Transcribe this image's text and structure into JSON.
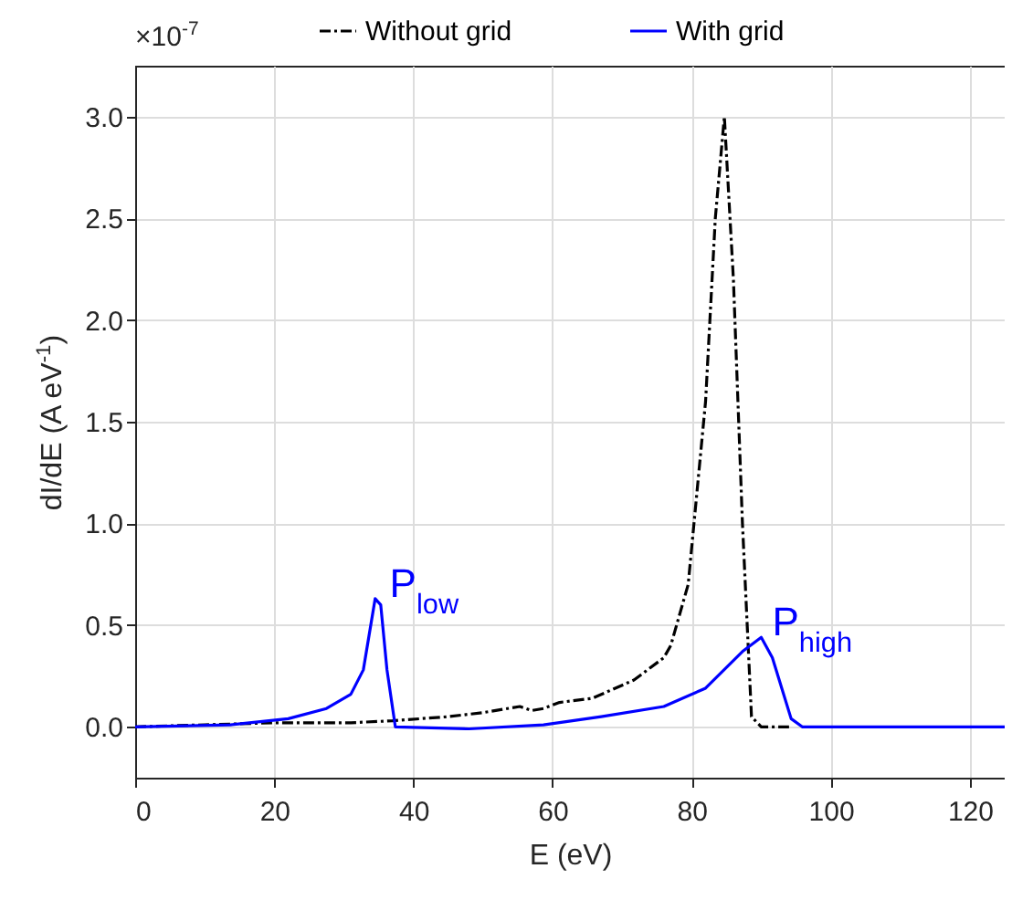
{
  "chart_data": {
    "type": "line",
    "xlabel": "E (eV)",
    "ylabel": "dI/dE (A eV$^{-1}$)",
    "xlim": [
      0,
      125
    ],
    "xticks": [
      0,
      20,
      40,
      60,
      80,
      100,
      120
    ],
    "ylim": [
      -0.25,
      3.25
    ],
    "yticks": [
      {
        "value": 0,
        "label": "0.0"
      },
      {
        "value": 0.5,
        "label": "0.5"
      },
      {
        "value": 1,
        "label": "1.0"
      },
      {
        "value": 1.5,
        "label": "1.5"
      },
      {
        "value": 2,
        "label": "2.0"
      },
      {
        "value": 2.5,
        "label": "2.5"
      },
      {
        "value": 3,
        "label": "3.0"
      }
    ],
    "grid": true,
    "legend": "top",
    "annotations": [
      "×10$^{-7}$",
      {
        "text": "P$_{low}$",
        "x": 35,
        "y": 0.63
      },
      {
        "text": "P$_{high}$",
        "x": 90,
        "y": 0.44
      }
    ],
    "series": [
      {
        "name": "Without grid",
        "color": "#000000",
        "line_style": "dashed",
        "x": [
          0,
          10,
          20,
          31,
          37,
          45,
          50,
          55.3,
          57,
          58.7,
          61,
          65.7,
          71.7,
          76,
          77,
          79.5,
          82,
          83.4,
          84.7,
          86,
          87.3,
          88.6,
          90,
          94
        ],
        "values": [
          0,
          0.01,
          0.02,
          0.02,
          0.03,
          0.05,
          0.07,
          0.1,
          0.08,
          0.09,
          0.12,
          0.14,
          0.23,
          0.34,
          0.4,
          0.7,
          1.6,
          2.5,
          3.0,
          2.2,
          1.0,
          0.05,
          0,
          0
        ]
      },
      {
        "name": "With grid",
        "color": "#0000ff",
        "line_style": "solid",
        "x": [
          0,
          13.7,
          22,
          27.5,
          31,
          32.8,
          34.5,
          35.3,
          36.2,
          37.4,
          48,
          58.7,
          67,
          76,
          82,
          87.3,
          90,
          91.6,
          94.3,
          95.9,
          100,
          110,
          125
        ],
        "values": [
          0,
          0.01,
          0.04,
          0.09,
          0.16,
          0.28,
          0.63,
          0.6,
          0.28,
          0,
          -0.01,
          0.01,
          0.05,
          0.1,
          0.19,
          0.37,
          0.44,
          0.34,
          0.04,
          0,
          0,
          0,
          0
        ]
      }
    ]
  }
}
